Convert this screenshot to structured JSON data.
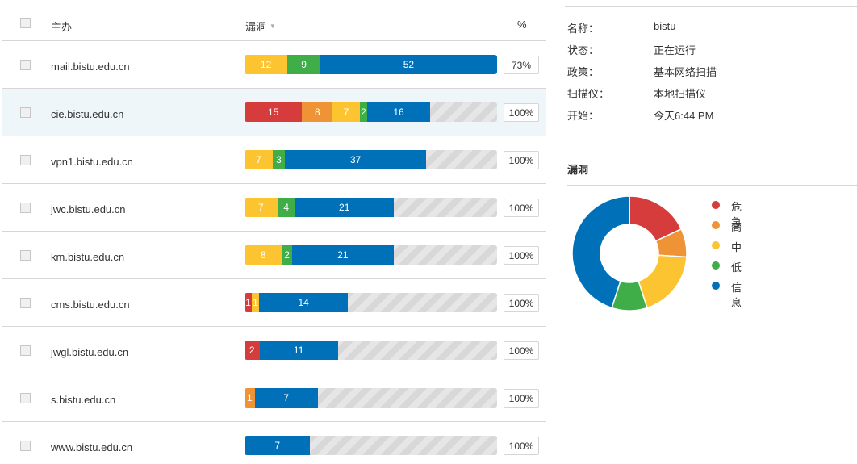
{
  "colors": {
    "critical": "#d63c3c",
    "high": "#ee9336",
    "medium": "#fdc431",
    "low": "#3fae49",
    "info": "#0071b9"
  },
  "table": {
    "select_all": "",
    "col_host": "主办",
    "col_vulns": "漏洞",
    "col_vulns_sort_icon": "▼",
    "col_pct": "%"
  },
  "hosts": [
    {
      "name": "mail.bistu.edu.cn",
      "pct": "73%",
      "bar_fill": 1.0,
      "segments": [
        {
          "severity": "medium",
          "count": "12",
          "share": 0.17
        },
        {
          "severity": "low",
          "count": "9",
          "share": 0.13
        },
        {
          "severity": "info",
          "count": "52",
          "share": 0.7
        }
      ]
    },
    {
      "name": "cie.bistu.edu.cn",
      "pct": "100%",
      "highlight": true,
      "bar_fill": 0.735,
      "segments": [
        {
          "severity": "critical",
          "count": "15",
          "share": 0.31
        },
        {
          "severity": "high",
          "count": "8",
          "share": 0.165
        },
        {
          "severity": "medium",
          "count": "7",
          "share": 0.145
        },
        {
          "severity": "low",
          "count": "2",
          "share": 0.041
        },
        {
          "severity": "info",
          "count": "16",
          "share": 0.339
        }
      ]
    },
    {
      "name": "vpn1.bistu.edu.cn",
      "pct": "100%",
      "bar_fill": 0.72,
      "segments": [
        {
          "severity": "medium",
          "count": "7",
          "share": 0.155
        },
        {
          "severity": "low",
          "count": "3",
          "share": 0.067
        },
        {
          "severity": "info",
          "count": "37",
          "share": 0.778
        }
      ]
    },
    {
      "name": "jwc.bistu.edu.cn",
      "pct": "100%",
      "bar_fill": 0.59,
      "segments": [
        {
          "severity": "medium",
          "count": "7",
          "share": 0.22
        },
        {
          "severity": "low",
          "count": "4",
          "share": 0.12
        },
        {
          "severity": "info",
          "count": "21",
          "share": 0.66
        }
      ]
    },
    {
      "name": "km.bistu.edu.cn",
      "pct": "100%",
      "bar_fill": 0.59,
      "segments": [
        {
          "severity": "medium",
          "count": "8",
          "share": 0.25
        },
        {
          "severity": "low",
          "count": "2",
          "share": 0.07
        },
        {
          "severity": "info",
          "count": "21",
          "share": 0.68
        }
      ]
    },
    {
      "name": "cms.bistu.edu.cn",
      "pct": "100%",
      "bar_fill": 0.41,
      "segments": [
        {
          "severity": "critical",
          "count": "1",
          "share": 0.07
        },
        {
          "severity": "medium",
          "count": "1",
          "share": 0.07
        },
        {
          "severity": "info",
          "count": "14",
          "share": 0.86
        }
      ]
    },
    {
      "name": "jwgl.bistu.edu.cn",
      "pct": "100%",
      "bar_fill": 0.37,
      "segments": [
        {
          "severity": "critical",
          "count": "2",
          "share": 0.16
        },
        {
          "severity": "info",
          "count": "11",
          "share": 0.84
        }
      ]
    },
    {
      "name": "s.bistu.edu.cn",
      "pct": "100%",
      "bar_fill": 0.29,
      "segments": [
        {
          "severity": "high",
          "count": "1",
          "share": 0.14
        },
        {
          "severity": "info",
          "count": "7",
          "share": 0.86
        }
      ]
    },
    {
      "name": "www.bistu.edu.cn",
      "pct": "100%",
      "bar_fill": 0.26,
      "segments": [
        {
          "severity": "info",
          "count": "7",
          "share": 1.0
        }
      ]
    }
  ],
  "details": [
    {
      "key": "名称：",
      "value": "bistu"
    },
    {
      "key": "状态：",
      "value": "正在运行"
    },
    {
      "key": "政策：",
      "value": "基本网络扫描"
    },
    {
      "key": "扫描仪：",
      "value": "本地扫描仪"
    },
    {
      "key": "开始：",
      "value": "今天6:44 PM"
    }
  ],
  "vulnerabilities": {
    "title": "漏洞",
    "chart_data": {
      "type": "pie",
      "donut": true,
      "slices": [
        {
          "label": "危急",
          "severity": "critical",
          "value": 18
        },
        {
          "label": "高",
          "severity": "high",
          "value": 8
        },
        {
          "label": "中",
          "severity": "medium",
          "value": 19
        },
        {
          "label": "低",
          "severity": "low",
          "value": 10
        },
        {
          "label": "信息",
          "severity": "info",
          "value": 45
        }
      ],
      "legend_position": "right"
    }
  }
}
